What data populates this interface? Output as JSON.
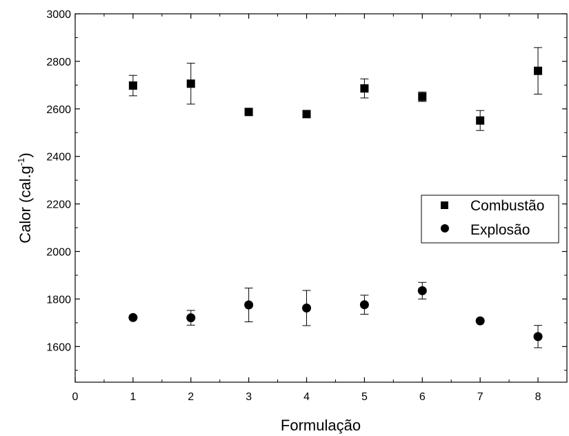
{
  "chart_data": {
    "type": "scatter",
    "title": "",
    "xlabel": "Formulação",
    "ylabel": "Calor (cal.g",
    "ylabel_sup": "-1",
    "ylabel_close": ")",
    "xlim": [
      0,
      8.5
    ],
    "ylim": [
      1450,
      3000
    ],
    "x_ticks": [
      0,
      1,
      2,
      3,
      4,
      5,
      6,
      7,
      8
    ],
    "y_ticks": [
      1600,
      1800,
      2000,
      2200,
      2400,
      2600,
      2800,
      3000
    ],
    "grid": false,
    "legend_position": "right",
    "series": [
      {
        "name": "Combustão",
        "marker": "square",
        "color": "#000000",
        "x": [
          1,
          2,
          3,
          4,
          5,
          6,
          7,
          8
        ],
        "y": [
          2698,
          2706,
          2587,
          2578,
          2686,
          2651,
          2551,
          2760
        ],
        "err": [
          43,
          86,
          0,
          0,
          40,
          20,
          42,
          98
        ]
      },
      {
        "name": "Explosão",
        "marker": "circle",
        "color": "#000000",
        "x": [
          1,
          2,
          3,
          4,
          5,
          6,
          7,
          8
        ],
        "y": [
          1722,
          1721,
          1775,
          1762,
          1776,
          1835,
          1708,
          1642
        ],
        "err": [
          0,
          31,
          71,
          74,
          40,
          35,
          0,
          47
        ]
      }
    ]
  }
}
